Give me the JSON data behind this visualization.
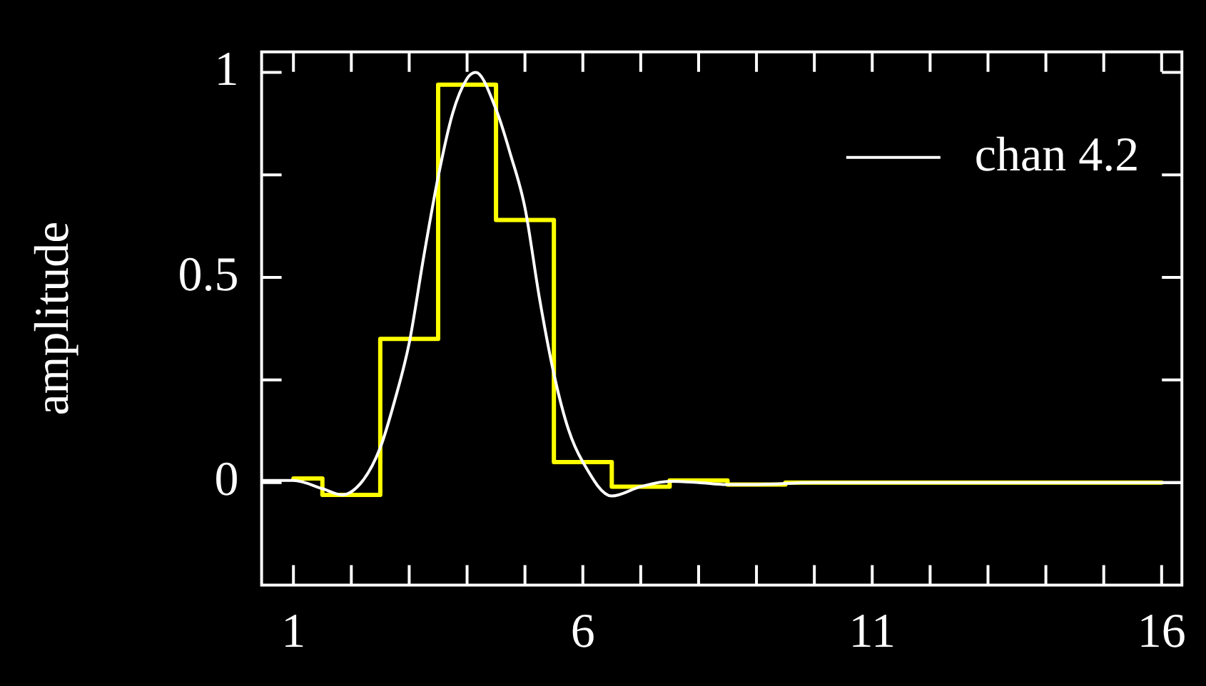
{
  "chart_data": {
    "type": "line",
    "ylabel": "amplitude",
    "xlim": [
      0.45,
      16.35
    ],
    "ylim": [
      -0.25,
      1.05
    ],
    "xticks": [
      1,
      {
        "value": 2,
        "label": null
      },
      {
        "value": 3,
        "label": null
      },
      {
        "value": 4,
        "label": null
      },
      {
        "value": 5,
        "label": null
      },
      6,
      {
        "value": 7,
        "label": null
      },
      {
        "value": 8,
        "label": null
      },
      {
        "value": 9,
        "label": null
      },
      {
        "value": 10,
        "label": null
      },
      11,
      {
        "value": 12,
        "label": null
      },
      {
        "value": 13,
        "label": null
      },
      {
        "value": 14,
        "label": null
      },
      {
        "value": 15,
        "label": null
      },
      16
    ],
    "yticks": [
      0,
      {
        "value": 0.25,
        "label": null
      },
      0.5,
      {
        "value": 0.75,
        "label": null
      },
      1
    ],
    "grid": false,
    "legend": "top right",
    "marker": "none",
    "line_style": "solid",
    "series": [
      {
        "type": "step",
        "color": "#ffff00",
        "x": [
          1,
          2,
          3,
          4,
          5,
          6,
          7,
          8,
          9,
          10,
          11,
          12,
          13,
          14,
          15,
          16
        ],
        "values": [
          0.01,
          -0.03,
          0.35,
          0.97,
          0.64,
          0.05,
          -0.01,
          0.005,
          -0.005,
          0,
          0,
          0,
          0,
          0,
          0,
          0
        ]
      },
      {
        "name": "chan 4.2",
        "color": "#ffffff",
        "x": [
          0.45,
          1,
          1.5,
          1.84,
          2.2,
          2.5,
          2.75,
          3,
          3.25,
          3.5,
          3.75,
          4,
          4.15,
          4.5,
          4.75,
          5,
          5.25,
          5.5,
          5.75,
          6,
          6.5,
          7,
          7.5,
          8,
          8.5,
          9,
          10,
          12,
          16.35
        ],
        "values": [
          0.005,
          0.005,
          -0.015,
          -0.03,
          0.005,
          0.085,
          0.2,
          0.34,
          0.55,
          0.745,
          0.9,
          0.985,
          1,
          0.91,
          0.8,
          0.67,
          0.45,
          0.265,
          0.13,
          0.05,
          -0.033,
          -0.01,
          0.003,
          0,
          -0.005,
          -0.005,
          0,
          0,
          0
        ]
      }
    ]
  }
}
